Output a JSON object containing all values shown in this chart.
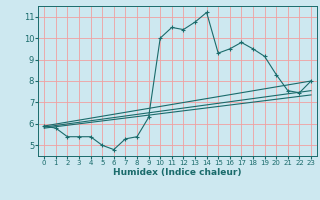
{
  "xlabel": "Humidex (Indice chaleur)",
  "background_color": "#cde8f0",
  "grid_color": "#f0a0a0",
  "line_color": "#1a6b6b",
  "xlim": [
    -0.5,
    23.5
  ],
  "ylim": [
    4.5,
    11.5
  ],
  "yticks": [
    5,
    6,
    7,
    8,
    9,
    10,
    11
  ],
  "xticks": [
    0,
    1,
    2,
    3,
    4,
    5,
    6,
    7,
    8,
    9,
    10,
    11,
    12,
    13,
    14,
    15,
    16,
    17,
    18,
    19,
    20,
    21,
    22,
    23
  ],
  "main_line_x": [
    0,
    1,
    2,
    3,
    4,
    5,
    6,
    7,
    8,
    9,
    10,
    11,
    12,
    13,
    14,
    15,
    16,
    17,
    18,
    19,
    20,
    21,
    22,
    23
  ],
  "main_line_y": [
    5.9,
    5.8,
    5.4,
    5.4,
    5.4,
    5.0,
    4.8,
    5.3,
    5.4,
    6.3,
    10.0,
    10.5,
    10.4,
    10.75,
    11.2,
    9.3,
    9.5,
    9.8,
    9.5,
    9.15,
    8.3,
    7.55,
    7.45,
    8.0
  ],
  "straight_lines": [
    {
      "x": [
        0,
        23
      ],
      "y": [
        5.9,
        8.0
      ]
    },
    {
      "x": [
        0,
        23
      ],
      "y": [
        5.85,
        7.55
      ]
    },
    {
      "x": [
        0,
        23
      ],
      "y": [
        5.8,
        7.35
      ]
    }
  ]
}
